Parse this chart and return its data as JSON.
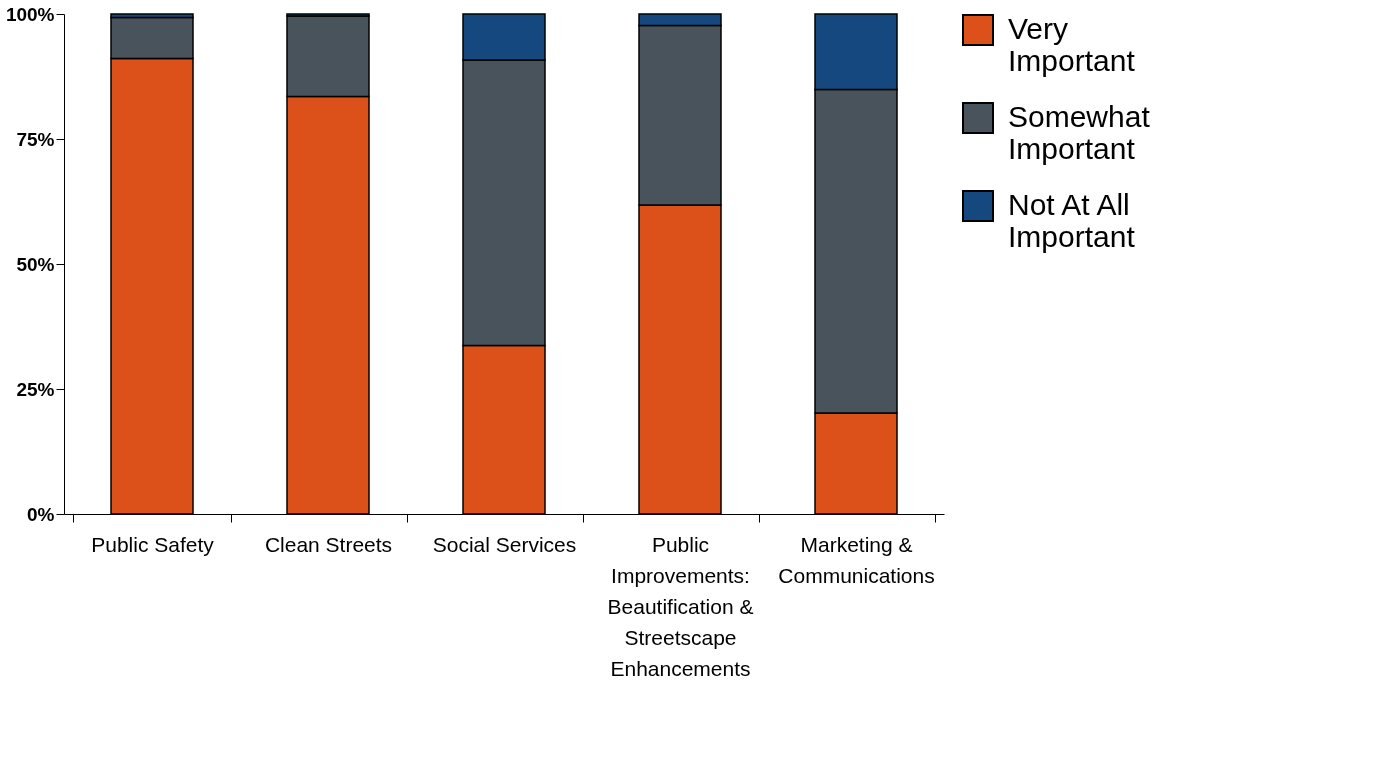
{
  "chart_data": {
    "type": "bar",
    "stacked": true,
    "categories": [
      "Public Safety",
      "Clean Streets",
      "Social Services",
      "Public Improvements: Beautification & Streetscape Enhancements",
      "Marketing & Communications"
    ],
    "series": [
      {
        "name": "Very Important",
        "color": "#dc5119",
        "values": [
          91.1,
          83.5,
          33.7,
          61.8,
          20.2
        ]
      },
      {
        "name": "Somewhat Important",
        "color": "#48535c",
        "values": [
          8.2,
          16.1,
          57.1,
          35.9,
          64.7
        ]
      },
      {
        "name": "Not At All Important",
        "color": "#15487f",
        "values": [
          0.7,
          0.4,
          9.2,
          2.3,
          15.1
        ]
      }
    ],
    "ylim": [
      0,
      100
    ],
    "yticks": [
      {
        "value": 0,
        "label": "0%"
      },
      {
        "value": 25,
        "label": "25%"
      },
      {
        "value": 50,
        "label": "50%"
      },
      {
        "value": 75,
        "label": "75%"
      },
      {
        "value": 100,
        "label": "100%"
      }
    ],
    "grid": false,
    "legend": "top right"
  }
}
